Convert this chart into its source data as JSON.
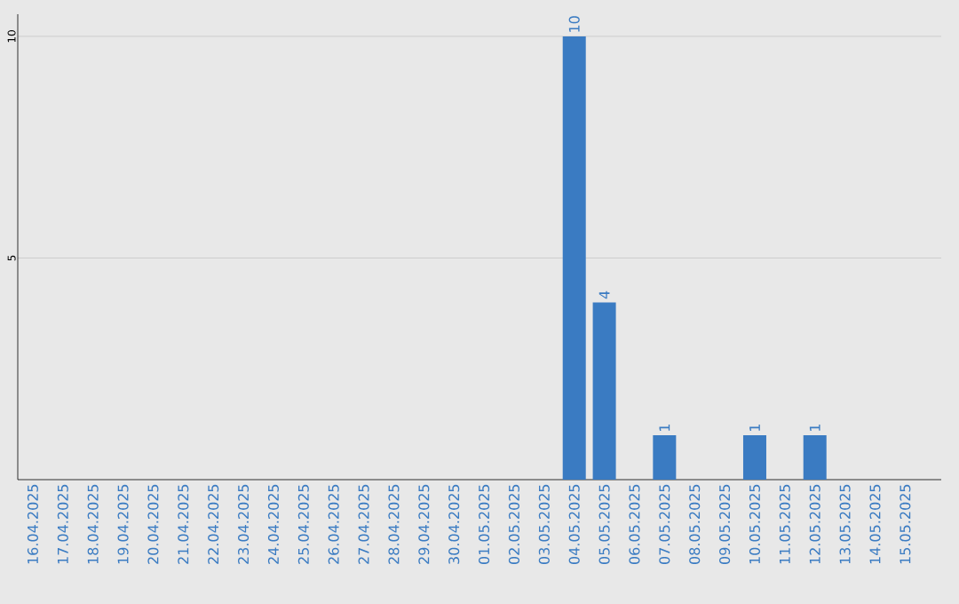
{
  "chart_data": {
    "type": "bar",
    "categories": [
      "16.04.2025",
      "17.04.2025",
      "18.04.2025",
      "19.04.2025",
      "20.04.2025",
      "21.04.2025",
      "22.04.2025",
      "23.04.2025",
      "24.04.2025",
      "25.04.2025",
      "26.04.2025",
      "27.04.2025",
      "28.04.2025",
      "29.04.2025",
      "30.04.2025",
      "01.05.2025",
      "02.05.2025",
      "03.05.2025",
      "04.05.2025",
      "05.05.2025",
      "06.05.2025",
      "07.05.2025",
      "08.05.2025",
      "09.05.2025",
      "10.05.2025",
      "11.05.2025",
      "12.05.2025",
      "13.05.2025",
      "14.05.2025",
      "15.05.2025"
    ],
    "values": [
      0,
      0,
      0,
      0,
      0,
      0,
      0,
      0,
      0,
      0,
      0,
      0,
      0,
      0,
      0,
      0,
      0,
      0,
      10,
      4,
      0,
      1,
      0,
      0,
      1,
      0,
      1,
      0,
      0,
      0
    ],
    "value_labels": [
      null,
      null,
      null,
      null,
      null,
      null,
      null,
      null,
      null,
      null,
      null,
      null,
      null,
      null,
      null,
      null,
      null,
      null,
      "10",
      "4",
      null,
      "1",
      null,
      null,
      "1",
      null,
      "1",
      null,
      null,
      null
    ],
    "color": "#3a7bc2",
    "ylim": [
      0,
      10.5
    ],
    "yticks": [
      5,
      10
    ],
    "grid": "y"
  }
}
